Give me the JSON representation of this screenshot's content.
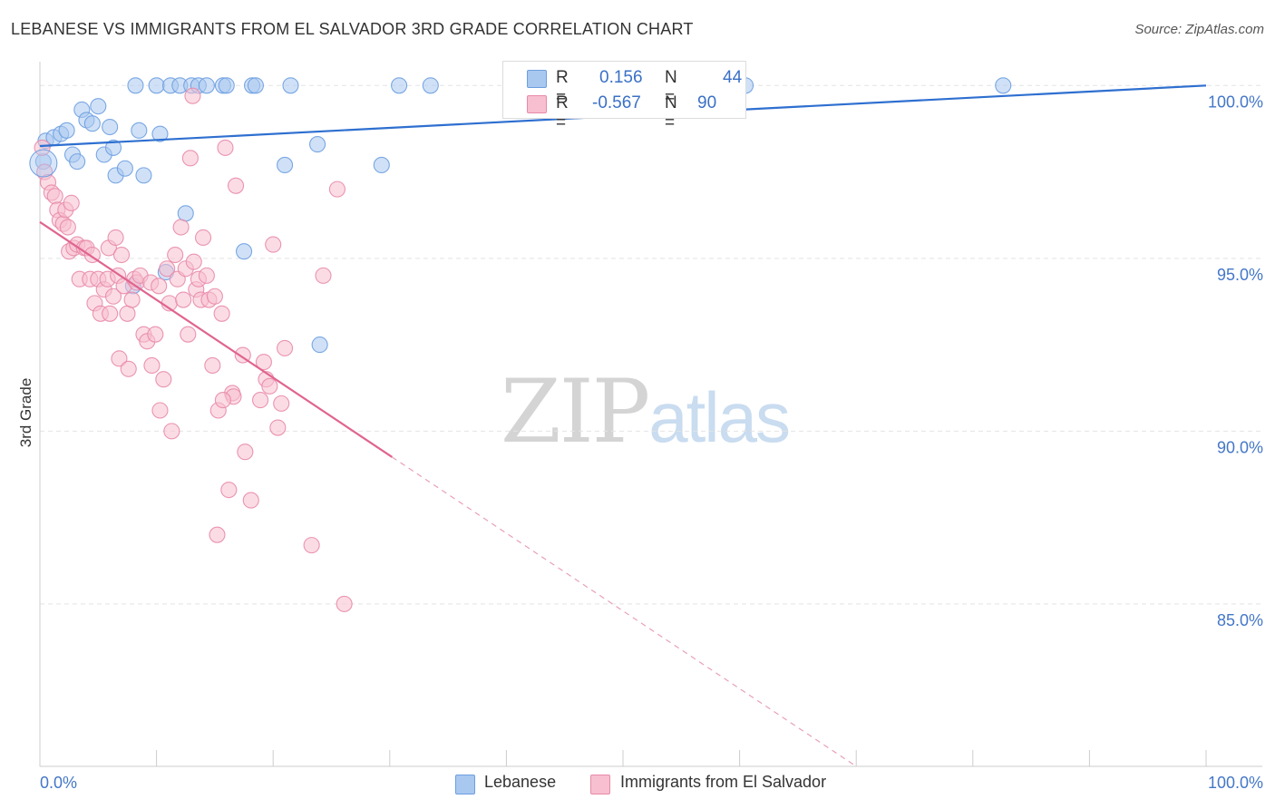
{
  "title": "LEBANESE VS IMMIGRANTS FROM EL SALVADOR 3RD GRADE CORRELATION CHART",
  "source": "Source: ZipAtlas.com",
  "watermark": {
    "zip": "ZIP",
    "atlas": "atlas"
  },
  "legend": {
    "rows": [
      {
        "r_label": "R =",
        "r_value": "0.156",
        "n_label": "N =",
        "n_value": "44",
        "color": "#a9c8f0",
        "border": "#6d9ee0"
      },
      {
        "r_label": "R =",
        "r_value": "-0.567",
        "n_label": "N =",
        "n_value": "90",
        "color": "#f7bfd0",
        "border": "#e88aa8"
      }
    ]
  },
  "bottom_legend": [
    {
      "label": "Lebanese",
      "color": "#a9c8f0",
      "border": "#6d9ee0"
    },
    {
      "label": "Immigrants from El Salvador",
      "color": "#f7bfd0",
      "border": "#e88aa8"
    }
  ],
  "chart_data": {
    "type": "scatter",
    "title": "LEBANESE VS IMMIGRANTS FROM EL SALVADOR 3RD GRADE CORRELATION CHART",
    "xlabel": "",
    "ylabel": "3rd Grade",
    "xlim": [
      0,
      100
    ],
    "ylim": [
      80.3,
      100.9
    ],
    "x_tick_labels": [
      "0.0%",
      "100.0%"
    ],
    "y_ticks": [
      100,
      95,
      90,
      85
    ],
    "y_tick_labels": [
      "100.0%",
      "95.0%",
      "90.0%",
      "85.0%"
    ],
    "grid": true,
    "series": [
      {
        "name": "Lebanese",
        "color": "#6d9ee0",
        "fill": "#a9c8f0",
        "trend": {
          "x0": 0,
          "y0": 98.25,
          "x1": 100,
          "y1": 100.0
        },
        "points": [
          [
            0.3,
            97.8
          ],
          [
            0.5,
            98.4
          ],
          [
            1.2,
            98.5
          ],
          [
            1.8,
            98.6
          ],
          [
            2.3,
            98.7
          ],
          [
            2.8,
            98.0
          ],
          [
            3.2,
            97.8
          ],
          [
            3.6,
            99.3
          ],
          [
            4.0,
            99.0
          ],
          [
            4.5,
            98.9
          ],
          [
            5.0,
            99.4
          ],
          [
            5.5,
            98.0
          ],
          [
            6.0,
            98.8
          ],
          [
            6.3,
            98.2
          ],
          [
            6.5,
            97.4
          ],
          [
            7.3,
            97.6
          ],
          [
            8.0,
            94.2
          ],
          [
            8.2,
            100.0
          ],
          [
            8.5,
            98.7
          ],
          [
            8.9,
            97.4
          ],
          [
            10.0,
            100.0
          ],
          [
            10.3,
            98.6
          ],
          [
            10.8,
            94.6
          ],
          [
            11.2,
            100.0
          ],
          [
            12.0,
            100.0
          ],
          [
            12.5,
            96.3
          ],
          [
            13.0,
            100.0
          ],
          [
            13.6,
            100.0
          ],
          [
            14.3,
            100.0
          ],
          [
            15.7,
            100.0
          ],
          [
            16.0,
            100.0
          ],
          [
            17.5,
            95.2
          ],
          [
            18.2,
            100.0
          ],
          [
            18.5,
            100.0
          ],
          [
            21.0,
            97.7
          ],
          [
            21.5,
            100.0
          ],
          [
            23.8,
            98.3
          ],
          [
            24.0,
            92.5
          ],
          [
            29.3,
            97.7
          ],
          [
            30.8,
            100.0
          ],
          [
            33.5,
            100.0
          ],
          [
            57.0,
            100.0
          ],
          [
            60.5,
            100.0
          ],
          [
            82.6,
            100.0
          ]
        ]
      },
      {
        "name": "Immigrants from El Salvador",
        "color": "#e88aa8",
        "fill": "#f7bfd0",
        "trend": {
          "x0": 0,
          "y0": 96.05,
          "x1": 30.2,
          "y1": 89.25,
          "dash_x1": 70.0,
          "dash_y1": 80.3
        },
        "points": [
          [
            0.2,
            98.2
          ],
          [
            0.4,
            97.5
          ],
          [
            0.7,
            97.2
          ],
          [
            1.0,
            96.9
          ],
          [
            1.3,
            96.8
          ],
          [
            1.5,
            96.4
          ],
          [
            1.7,
            96.1
          ],
          [
            2.0,
            96.0
          ],
          [
            2.2,
            96.4
          ],
          [
            2.4,
            95.9
          ],
          [
            2.7,
            96.6
          ],
          [
            2.5,
            95.2
          ],
          [
            2.9,
            95.3
          ],
          [
            3.2,
            95.4
          ],
          [
            3.4,
            94.4
          ],
          [
            3.8,
            95.3
          ],
          [
            4.0,
            95.3
          ],
          [
            4.3,
            94.4
          ],
          [
            4.5,
            95.1
          ],
          [
            4.7,
            93.7
          ],
          [
            5.0,
            94.4
          ],
          [
            5.2,
            93.4
          ],
          [
            5.5,
            94.1
          ],
          [
            5.8,
            94.4
          ],
          [
            5.9,
            95.3
          ],
          [
            6.0,
            93.4
          ],
          [
            6.3,
            93.9
          ],
          [
            6.5,
            95.6
          ],
          [
            6.7,
            94.5
          ],
          [
            6.8,
            92.1
          ],
          [
            7.0,
            95.1
          ],
          [
            7.2,
            94.2
          ],
          [
            7.5,
            93.4
          ],
          [
            7.6,
            91.8
          ],
          [
            7.9,
            93.8
          ],
          [
            8.1,
            94.4
          ],
          [
            8.3,
            94.3
          ],
          [
            8.6,
            94.5
          ],
          [
            8.9,
            92.8
          ],
          [
            9.2,
            92.6
          ],
          [
            9.5,
            94.3
          ],
          [
            9.6,
            91.9
          ],
          [
            9.9,
            92.8
          ],
          [
            10.2,
            94.2
          ],
          [
            10.3,
            90.6
          ],
          [
            10.6,
            91.5
          ],
          [
            10.9,
            94.7
          ],
          [
            11.1,
            93.7
          ],
          [
            11.3,
            90.0
          ],
          [
            11.6,
            95.1
          ],
          [
            11.8,
            94.4
          ],
          [
            12.1,
            95.9
          ],
          [
            12.3,
            93.8
          ],
          [
            12.5,
            94.7
          ],
          [
            12.7,
            92.8
          ],
          [
            12.9,
            97.9
          ],
          [
            13.1,
            99.7
          ],
          [
            13.2,
            94.9
          ],
          [
            13.4,
            94.1
          ],
          [
            13.6,
            94.4
          ],
          [
            13.8,
            93.8
          ],
          [
            14.0,
            95.6
          ],
          [
            14.3,
            94.5
          ],
          [
            14.5,
            93.8
          ],
          [
            14.8,
            91.9
          ],
          [
            15.0,
            93.9
          ],
          [
            15.2,
            87.0
          ],
          [
            15.3,
            90.6
          ],
          [
            15.6,
            93.4
          ],
          [
            15.9,
            98.2
          ],
          [
            16.2,
            88.3
          ],
          [
            16.5,
            91.1
          ],
          [
            16.6,
            91.0
          ],
          [
            16.8,
            97.1
          ],
          [
            17.4,
            92.2
          ],
          [
            17.6,
            89.4
          ],
          [
            18.1,
            88.0
          ],
          [
            18.9,
            90.9
          ],
          [
            19.2,
            92.0
          ],
          [
            19.4,
            91.5
          ],
          [
            19.7,
            91.3
          ],
          [
            20.0,
            95.4
          ],
          [
            20.4,
            90.1
          ],
          [
            20.7,
            90.8
          ],
          [
            21.0,
            92.4
          ],
          [
            23.3,
            86.7
          ],
          [
            24.3,
            94.5
          ],
          [
            25.5,
            97.0
          ],
          [
            26.1,
            85.0
          ],
          [
            15.7,
            90.9
          ]
        ]
      }
    ]
  }
}
